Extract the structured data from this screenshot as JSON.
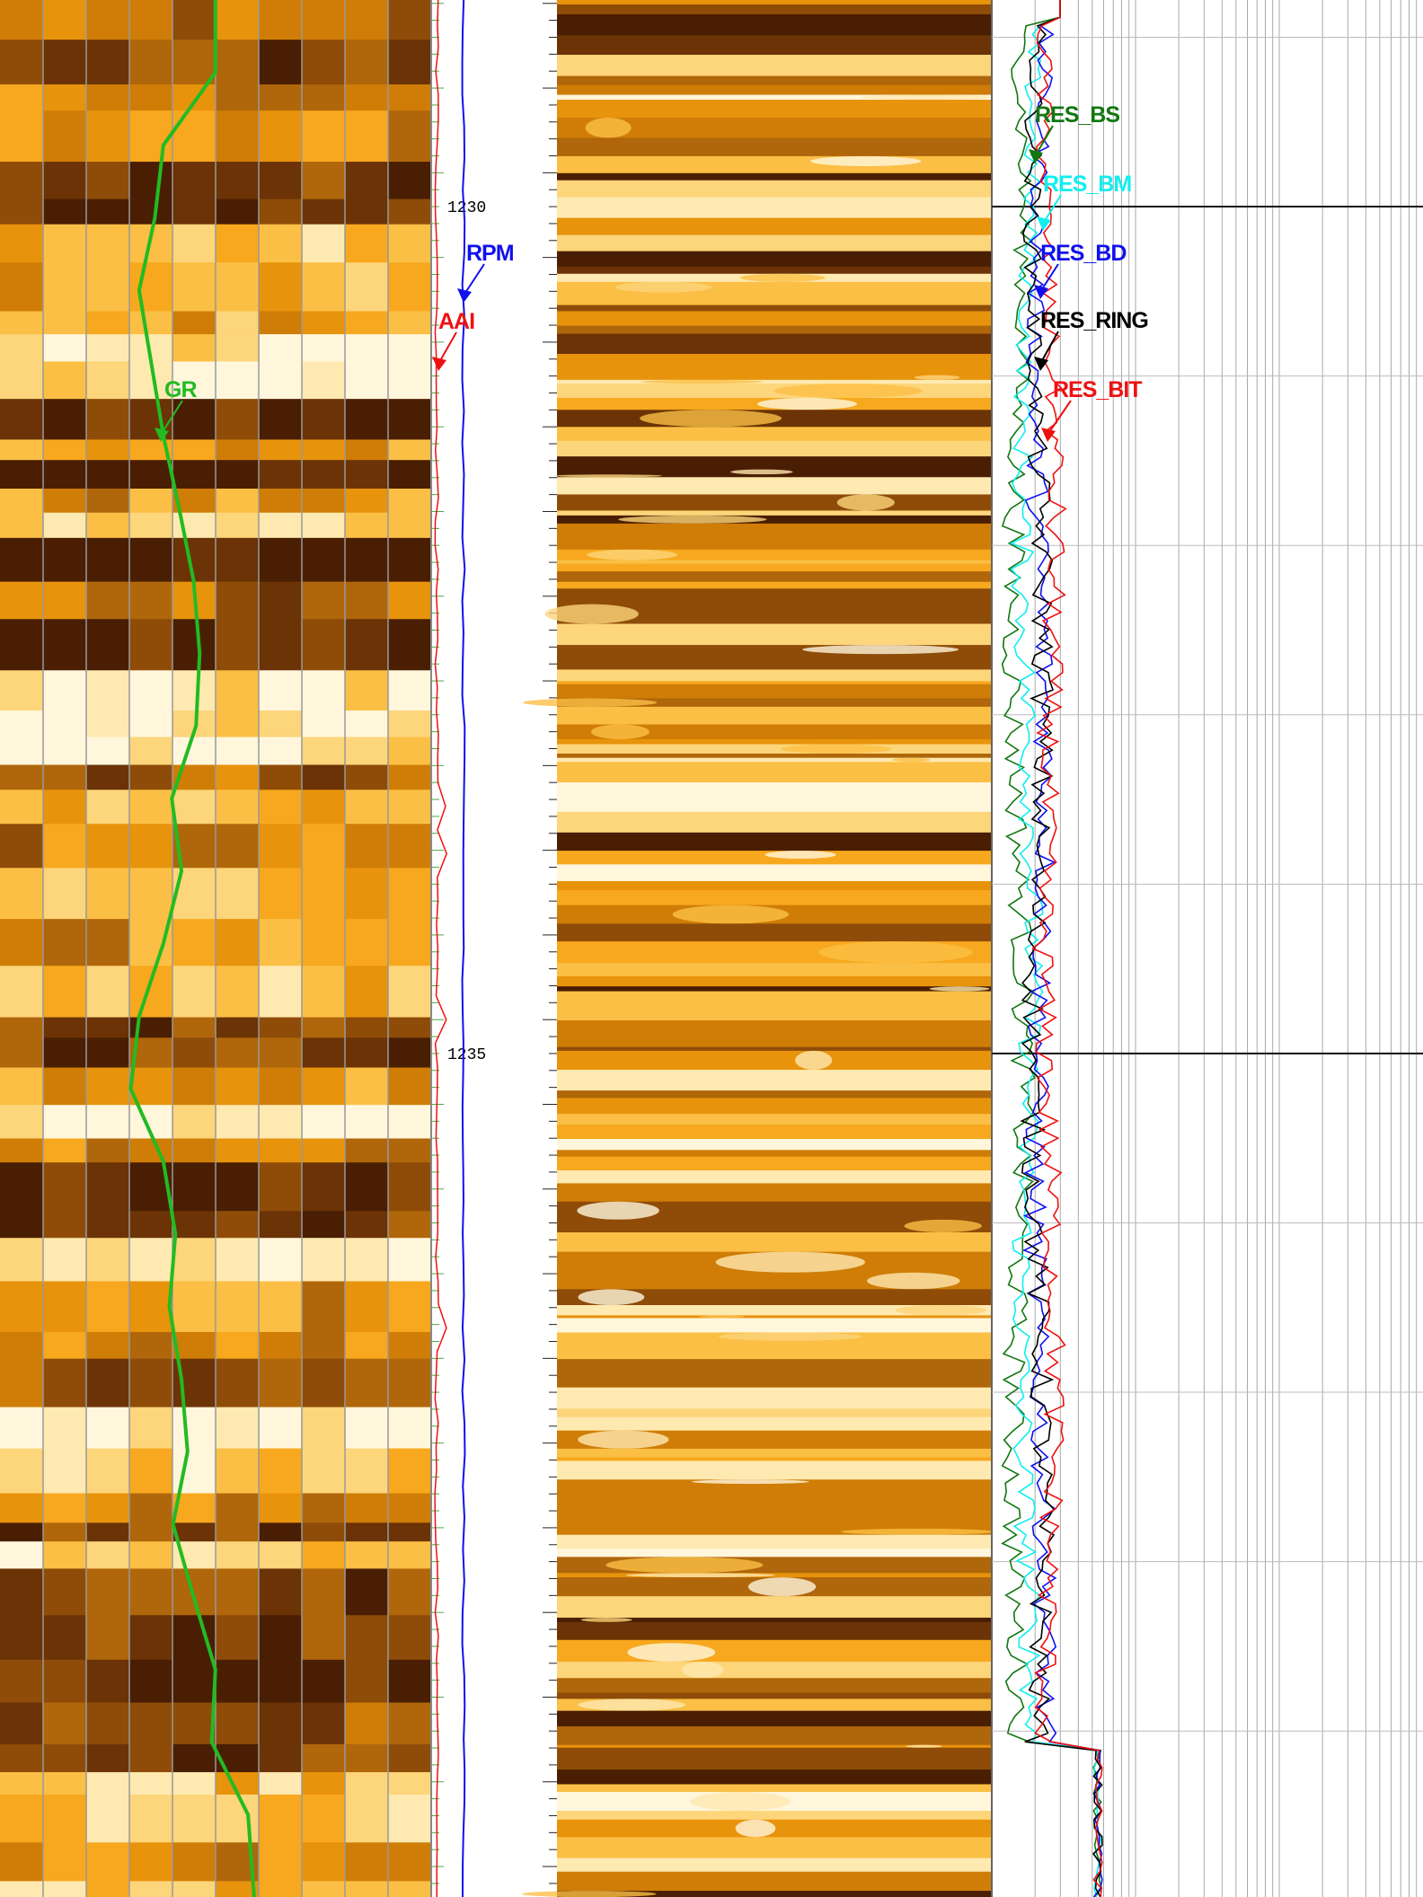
{
  "chart_data": {
    "type": "well-log",
    "ylim": [
      1228.78,
      1239.98
    ],
    "yticks": [
      1230,
      1235
    ],
    "tracks": [
      {
        "curves": [
          {
            "name": "GR",
            "color": "#22bb22"
          }
        ]
      },
      {
        "curves": [
          {
            "name": "RPM",
            "color": "#1010ee"
          },
          {
            "name": "AAI",
            "color": "#ee1111"
          }
        ]
      },
      {
        "curves": [
          {
            "name": "RES_BS",
            "color": "#117711"
          },
          {
            "name": "RES_BM",
            "color": "#11eeee"
          },
          {
            "name": "RES_BD",
            "color": "#1010ee"
          },
          {
            "name": "RES_RING",
            "color": "#000000"
          },
          {
            "name": "RES_BIT",
            "color": "#ee1111"
          }
        ]
      }
    ]
  }
}
